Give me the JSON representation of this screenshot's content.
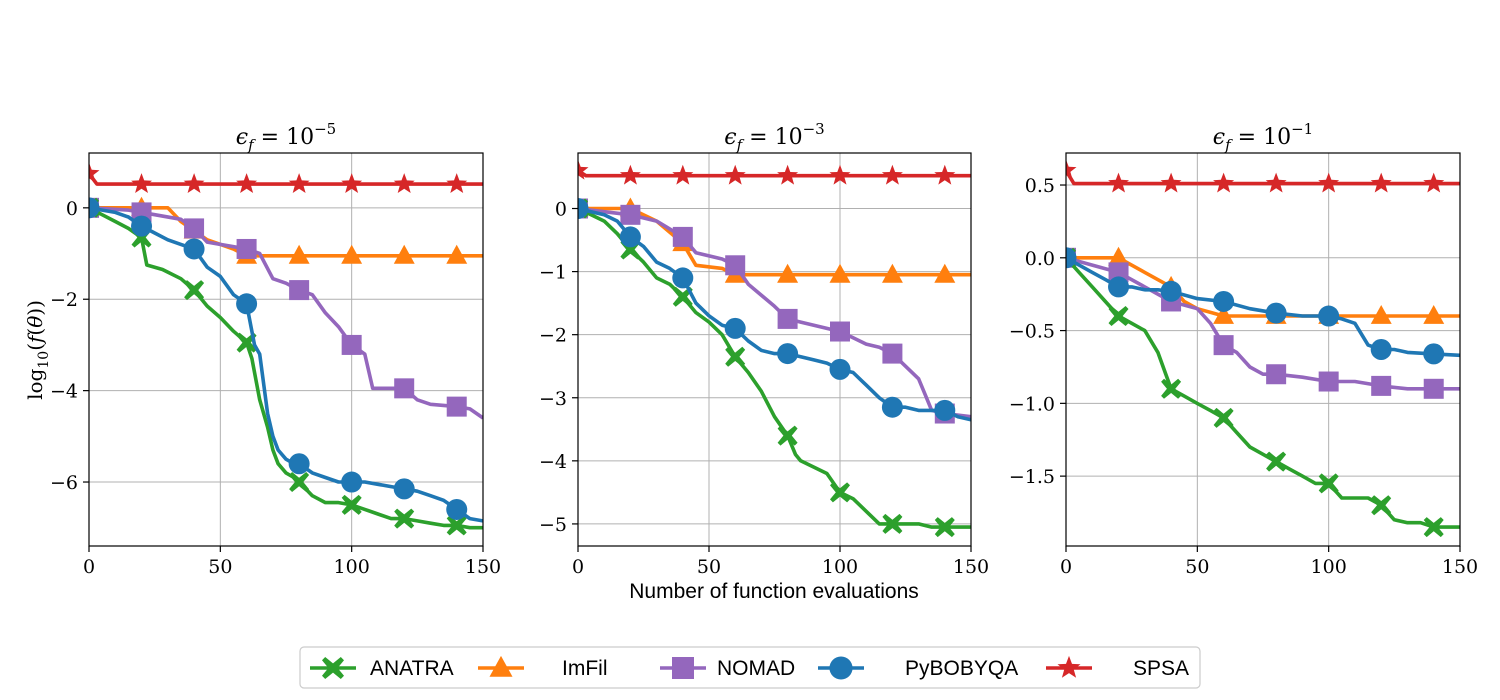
{
  "chart_data": {
    "type": "line",
    "shared_xlabel": "Number of function evaluations",
    "shared_ylabel": "log10(f(θ))",
    "legend_position": "bottom-center",
    "series_styles": [
      {
        "name": "ANATRA",
        "color": "#2ca02c",
        "marker": "x-marker"
      },
      {
        "name": "ImFil",
        "color": "#ff7f0e",
        "marker": "triangle-marker"
      },
      {
        "name": "NOMAD",
        "color": "#9467bd",
        "marker": "square-marker"
      },
      {
        "name": "PyBOBYQA",
        "color": "#1f77b4",
        "marker": "circle-marker"
      },
      {
        "name": "SPSA",
        "color": "#d62728",
        "marker": "star-marker"
      }
    ],
    "panels": [
      {
        "title": "ϵf = 10^−5",
        "title_main": "ϵ",
        "title_sub": "f",
        "title_eq": " = 10",
        "title_exp": "−5",
        "xlim": [
          0,
          150
        ],
        "ylim": [
          -7.4,
          1.2
        ],
        "xticks": [
          0,
          50,
          100,
          150
        ],
        "xtick_labels": [
          "0",
          "50",
          "100",
          "150"
        ],
        "yticks": [
          0,
          -2,
          -4,
          -6
        ],
        "ytick_labels": [
          "0",
          "−2",
          "−4",
          "−6"
        ],
        "series": [
          {
            "name": "ANATRA",
            "x": [
              0,
              5,
              10,
              15,
              20,
              22,
              28,
              35,
              40,
              45,
              50,
              55,
              60,
              62,
              65,
              68,
              70,
              72,
              75,
              78,
              80,
              85,
              90,
              95,
              100,
              105,
              110,
              115,
              120,
              125,
              130,
              135,
              140,
              145,
              150
            ],
            "y": [
              0,
              -0.15,
              -0.3,
              -0.45,
              -0.65,
              -1.25,
              -1.35,
              -1.55,
              -1.8,
              -2.15,
              -2.4,
              -2.7,
              -2.95,
              -3.3,
              -4.2,
              -4.8,
              -5.3,
              -5.6,
              -5.8,
              -5.9,
              -6.0,
              -6.3,
              -6.45,
              -6.45,
              -6.5,
              -6.6,
              -6.7,
              -6.8,
              -6.8,
              -6.85,
              -6.9,
              -6.95,
              -6.95,
              -7.0,
              -7.0
            ]
          },
          {
            "name": "ImFil",
            "x": [
              0,
              30,
              35,
              45,
              55,
              60,
              150
            ],
            "y": [
              0,
              0,
              -0.3,
              -0.7,
              -0.9,
              -1.05,
              -1.05
            ]
          },
          {
            "name": "NOMAD",
            "x": [
              0,
              15,
              20,
              25,
              35,
              40,
              45,
              55,
              60,
              65,
              70,
              75,
              80,
              85,
              90,
              95,
              100,
              105,
              108,
              115,
              120,
              125,
              130,
              140,
              145,
              150
            ],
            "y": [
              0,
              -0.05,
              -0.1,
              -0.15,
              -0.25,
              -0.45,
              -0.75,
              -0.85,
              -0.9,
              -1.0,
              -1.55,
              -1.65,
              -1.8,
              -1.9,
              -2.3,
              -2.6,
              -3.0,
              -3.2,
              -3.95,
              -3.95,
              -3.95,
              -4.2,
              -4.3,
              -4.35,
              -4.4,
              -4.6
            ]
          },
          {
            "name": "PyBOBYQA",
            "x": [
              0,
              5,
              10,
              15,
              20,
              25,
              30,
              35,
              40,
              45,
              50,
              55,
              60,
              63,
              65,
              68,
              70,
              72,
              75,
              78,
              80,
              85,
              90,
              95,
              100,
              105,
              110,
              115,
              120,
              125,
              130,
              135,
              140,
              145,
              150
            ],
            "y": [
              0,
              -0.05,
              -0.1,
              -0.2,
              -0.4,
              -0.55,
              -0.7,
              -0.8,
              -0.9,
              -1.3,
              -1.5,
              -1.9,
              -2.1,
              -3.0,
              -3.2,
              -4.5,
              -5.0,
              -5.3,
              -5.5,
              -5.6,
              -5.6,
              -5.8,
              -5.9,
              -6.0,
              -6.0,
              -6.0,
              -6.05,
              -6.1,
              -6.15,
              -6.2,
              -6.3,
              -6.4,
              -6.6,
              -6.8,
              -6.85
            ]
          },
          {
            "name": "SPSA",
            "x": [
              0,
              3,
              150
            ],
            "y": [
              0.75,
              0.52,
              0.52
            ]
          }
        ]
      },
      {
        "title": "ϵf = 10^−3",
        "title_main": "ϵ",
        "title_sub": "f",
        "title_eq": " = 10",
        "title_exp": "−3",
        "xlim": [
          0,
          150
        ],
        "ylim": [
          -5.35,
          0.88
        ],
        "xticks": [
          0,
          50,
          100,
          150
        ],
        "xtick_labels": [
          "0",
          "50",
          "100",
          "150"
        ],
        "yticks": [
          0,
          -1,
          -2,
          -3,
          -4,
          -5
        ],
        "ytick_labels": [
          "0",
          "−1",
          "−2",
          "−3",
          "−4",
          "−5"
        ],
        "series": [
          {
            "name": "ANATRA",
            "x": [
              0,
              5,
              10,
              15,
              20,
              25,
              30,
              35,
              40,
              45,
              50,
              55,
              60,
              65,
              70,
              75,
              80,
              83,
              85,
              90,
              95,
              100,
              105,
              110,
              115,
              120,
              125,
              130,
              135,
              140,
              145,
              150
            ],
            "y": [
              0,
              -0.1,
              -0.2,
              -0.4,
              -0.65,
              -0.85,
              -1.1,
              -1.2,
              -1.4,
              -1.65,
              -1.8,
              -2.0,
              -2.35,
              -2.6,
              -2.9,
              -3.3,
              -3.6,
              -3.9,
              -4.0,
              -4.1,
              -4.2,
              -4.5,
              -4.6,
              -4.8,
              -5.0,
              -5.0,
              -5.0,
              -5.0,
              -5.05,
              -5.05,
              -5.05,
              -5.05
            ]
          },
          {
            "name": "ImFil",
            "x": [
              0,
              20,
              30,
              40,
              45,
              55,
              60,
              150
            ],
            "y": [
              0,
              0,
              -0.2,
              -0.55,
              -0.9,
              -0.95,
              -1.05,
              -1.05
            ]
          },
          {
            "name": "NOMAD",
            "x": [
              0,
              10,
              20,
              30,
              38,
              40,
              45,
              55,
              60,
              65,
              75,
              80,
              85,
              90,
              95,
              100,
              105,
              110,
              115,
              120,
              125,
              130,
              133,
              135,
              140,
              150
            ],
            "y": [
              0,
              -0.05,
              -0.1,
              -0.2,
              -0.4,
              -0.45,
              -0.7,
              -0.8,
              -0.9,
              -1.2,
              -1.55,
              -1.75,
              -1.8,
              -1.85,
              -1.9,
              -1.95,
              -2.05,
              -2.15,
              -2.2,
              -2.3,
              -2.5,
              -2.7,
              -3.0,
              -3.2,
              -3.25,
              -3.3
            ]
          },
          {
            "name": "PyBOBYQA",
            "x": [
              0,
              5,
              10,
              15,
              20,
              25,
              30,
              35,
              40,
              45,
              50,
              55,
              60,
              65,
              70,
              75,
              80,
              85,
              90,
              95,
              100,
              105,
              110,
              115,
              120,
              125,
              130,
              135,
              140,
              145,
              150
            ],
            "y": [
              0,
              -0.05,
              -0.1,
              -0.2,
              -0.45,
              -0.6,
              -0.85,
              -0.95,
              -1.1,
              -1.5,
              -1.7,
              -1.85,
              -1.9,
              -2.1,
              -2.25,
              -2.3,
              -2.3,
              -2.35,
              -2.4,
              -2.45,
              -2.55,
              -2.6,
              -2.8,
              -3.0,
              -3.15,
              -3.15,
              -3.2,
              -3.2,
              -3.2,
              -3.3,
              -3.35
            ]
          },
          {
            "name": "SPSA",
            "x": [
              0,
              3,
              150
            ],
            "y": [
              0.6,
              0.52,
              0.52
            ]
          }
        ]
      },
      {
        "title": "ϵf = 10^−1",
        "title_main": "ϵ",
        "title_sub": "f",
        "title_eq": " = 10",
        "title_exp": "−1",
        "xlim": [
          0,
          150
        ],
        "ylim": [
          -1.98,
          0.72
        ],
        "xticks": [
          0,
          50,
          100,
          150
        ],
        "xtick_labels": [
          "0",
          "50",
          "100",
          "150"
        ],
        "yticks": [
          0.5,
          0,
          -0.5,
          -1.0,
          -1.5
        ],
        "ytick_labels": [
          "0.5",
          "0.0",
          "−0.5",
          "−1.0",
          "−1.5"
        ],
        "series": [
          {
            "name": "ANATRA",
            "x": [
              0,
              5,
              10,
              15,
              20,
              25,
              30,
              35,
              38,
              40,
              45,
              50,
              55,
              60,
              65,
              70,
              75,
              80,
              85,
              90,
              95,
              100,
              105,
              110,
              115,
              120,
              125,
              130,
              135,
              140,
              145,
              150
            ],
            "y": [
              0,
              -0.1,
              -0.2,
              -0.3,
              -0.4,
              -0.45,
              -0.5,
              -0.65,
              -0.8,
              -0.9,
              -0.95,
              -1.0,
              -1.05,
              -1.1,
              -1.2,
              -1.3,
              -1.35,
              -1.4,
              -1.45,
              -1.5,
              -1.55,
              -1.55,
              -1.65,
              -1.65,
              -1.65,
              -1.7,
              -1.8,
              -1.82,
              -1.82,
              -1.85,
              -1.85,
              -1.85
            ]
          },
          {
            "name": "ImFil",
            "x": [
              0,
              20,
              30,
              40,
              45,
              50,
              60,
              150
            ],
            "y": [
              0,
              0,
              -0.1,
              -0.2,
              -0.3,
              -0.35,
              -0.4,
              -0.4
            ]
          },
          {
            "name": "NOMAD",
            "x": [
              0,
              10,
              20,
              30,
              40,
              50,
              55,
              60,
              65,
              70,
              75,
              80,
              90,
              100,
              110,
              120,
              130,
              140,
              150
            ],
            "y": [
              0,
              -0.05,
              -0.1,
              -0.2,
              -0.3,
              -0.35,
              -0.45,
              -0.6,
              -0.65,
              -0.75,
              -0.8,
              -0.8,
              -0.82,
              -0.85,
              -0.85,
              -0.88,
              -0.9,
              -0.9,
              -0.9
            ]
          },
          {
            "name": "PyBOBYQA",
            "x": [
              0,
              5,
              10,
              15,
              20,
              25,
              30,
              35,
              40,
              50,
              60,
              70,
              80,
              90,
              100,
              105,
              110,
              115,
              120,
              125,
              130,
              140,
              150
            ],
            "y": [
              0,
              -0.05,
              -0.1,
              -0.15,
              -0.2,
              -0.2,
              -0.22,
              -0.22,
              -0.23,
              -0.28,
              -0.3,
              -0.35,
              -0.38,
              -0.4,
              -0.4,
              -0.42,
              -0.45,
              -0.6,
              -0.63,
              -0.63,
              -0.65,
              -0.66,
              -0.67
            ]
          },
          {
            "name": "SPSA",
            "x": [
              0,
              3,
              150
            ],
            "y": [
              0.6,
              0.51,
              0.51
            ]
          }
        ]
      }
    ]
  }
}
